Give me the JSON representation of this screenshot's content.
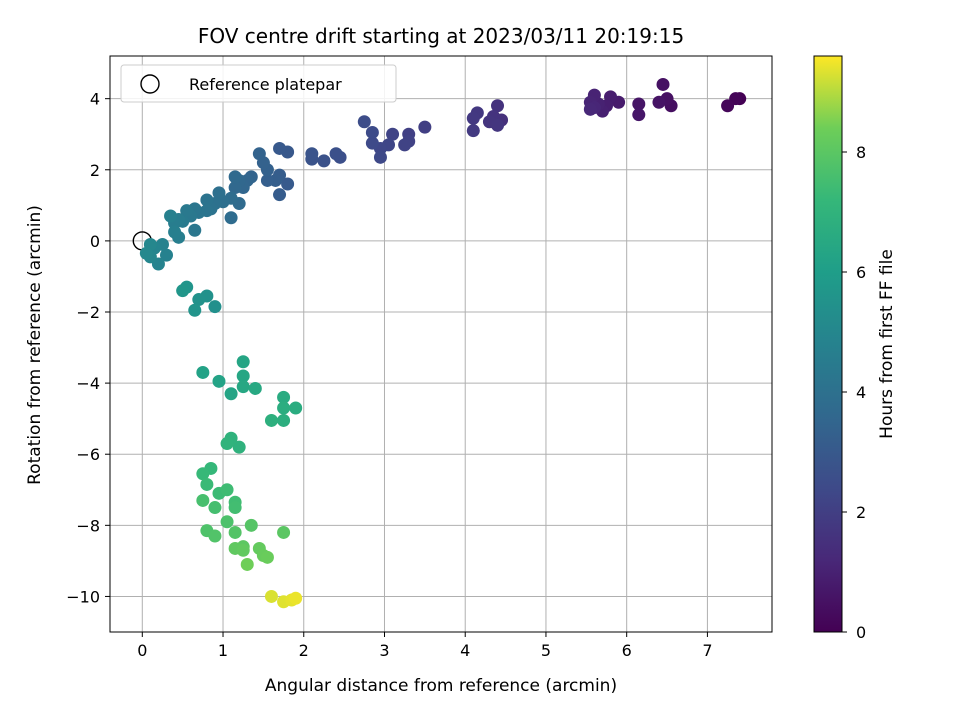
{
  "chart_data": {
    "type": "scatter",
    "title": "FOV centre drift starting at 2023/03/11 20:19:15",
    "xlabel": "Angular distance from reference (arcmin)",
    "ylabel": "Rotation from reference (arcmin)",
    "xlim": [
      -0.4,
      7.8
    ],
    "ylim": [
      -11.0,
      5.2
    ],
    "x_ticks": [
      0,
      1,
      2,
      3,
      4,
      5,
      6,
      7
    ],
    "y_ticks": [
      -10,
      -8,
      -6,
      -4,
      -2,
      0,
      2,
      4
    ],
    "x_tick_labels": [
      "0",
      "1",
      "2",
      "3",
      "4",
      "5",
      "6",
      "7"
    ],
    "y_tick_labels": [
      "−10",
      "−8",
      "−6",
      "−4",
      "−2",
      "0",
      "2",
      "4"
    ],
    "grid": true,
    "colormap": "viridis",
    "colorbar": {
      "label": "Hours from first FF file",
      "range": [
        0,
        9.6
      ],
      "ticks": [
        0,
        2,
        4,
        6,
        8
      ],
      "tick_labels": [
        "0",
        "2",
        "4",
        "6",
        "8"
      ]
    },
    "legend": {
      "position": "top-left",
      "entries": [
        {
          "label": "Reference platepar",
          "marker": "hollow-circle"
        }
      ]
    },
    "reference_point": {
      "x": 0,
      "y": 0
    },
    "points": [
      {
        "x": 7.4,
        "y": 4.0,
        "c": 0.0
      },
      {
        "x": 7.35,
        "y": 4.0,
        "c": 0.1
      },
      {
        "x": 7.25,
        "y": 3.8,
        "c": 0.15
      },
      {
        "x": 6.55,
        "y": 3.8,
        "c": 0.4
      },
      {
        "x": 6.5,
        "y": 4.0,
        "c": 0.45
      },
      {
        "x": 6.45,
        "y": 4.4,
        "c": 0.5
      },
      {
        "x": 6.4,
        "y": 3.9,
        "c": 0.55
      },
      {
        "x": 6.15,
        "y": 3.85,
        "c": 0.6
      },
      {
        "x": 6.15,
        "y": 3.55,
        "c": 0.65
      },
      {
        "x": 5.9,
        "y": 3.9,
        "c": 0.8
      },
      {
        "x": 5.8,
        "y": 4.05,
        "c": 0.85
      },
      {
        "x": 5.75,
        "y": 3.8,
        "c": 0.9
      },
      {
        "x": 5.7,
        "y": 3.65,
        "c": 0.95
      },
      {
        "x": 5.65,
        "y": 3.85,
        "c": 1.0
      },
      {
        "x": 5.6,
        "y": 4.1,
        "c": 1.05
      },
      {
        "x": 5.55,
        "y": 3.9,
        "c": 1.1
      },
      {
        "x": 5.6,
        "y": 3.75,
        "c": 1.15
      },
      {
        "x": 5.55,
        "y": 3.7,
        "c": 1.2
      },
      {
        "x": 4.45,
        "y": 3.4,
        "c": 1.5
      },
      {
        "x": 4.4,
        "y": 3.8,
        "c": 1.55
      },
      {
        "x": 4.35,
        "y": 3.5,
        "c": 1.6
      },
      {
        "x": 4.3,
        "y": 3.35,
        "c": 1.65
      },
      {
        "x": 4.4,
        "y": 3.25,
        "c": 1.7
      },
      {
        "x": 4.15,
        "y": 3.6,
        "c": 1.75
      },
      {
        "x": 4.1,
        "y": 3.45,
        "c": 1.8
      },
      {
        "x": 4.1,
        "y": 3.1,
        "c": 1.85
      },
      {
        "x": 3.5,
        "y": 3.2,
        "c": 2.0
      },
      {
        "x": 3.3,
        "y": 3.0,
        "c": 2.05
      },
      {
        "x": 3.3,
        "y": 2.8,
        "c": 2.1
      },
      {
        "x": 3.25,
        "y": 2.7,
        "c": 2.15
      },
      {
        "x": 3.1,
        "y": 3.0,
        "c": 2.2
      },
      {
        "x": 3.05,
        "y": 2.7,
        "c": 2.25
      },
      {
        "x": 2.95,
        "y": 2.6,
        "c": 2.3
      },
      {
        "x": 2.95,
        "y": 2.35,
        "c": 2.35
      },
      {
        "x": 2.85,
        "y": 2.75,
        "c": 2.4
      },
      {
        "x": 2.85,
        "y": 3.05,
        "c": 2.45
      },
      {
        "x": 2.75,
        "y": 3.35,
        "c": 2.5
      },
      {
        "x": 2.45,
        "y": 2.35,
        "c": 2.6
      },
      {
        "x": 2.4,
        "y": 2.45,
        "c": 2.65
      },
      {
        "x": 2.25,
        "y": 2.25,
        "c": 2.7
      },
      {
        "x": 2.1,
        "y": 2.3,
        "c": 2.75
      },
      {
        "x": 2.1,
        "y": 2.45,
        "c": 2.8
      },
      {
        "x": 1.8,
        "y": 2.5,
        "c": 2.95
      },
      {
        "x": 1.7,
        "y": 2.6,
        "c": 3.0
      },
      {
        "x": 1.8,
        "y": 1.6,
        "c": 3.05
      },
      {
        "x": 1.7,
        "y": 1.3,
        "c": 3.1
      },
      {
        "x": 1.7,
        "y": 1.85,
        "c": 3.15
      },
      {
        "x": 1.65,
        "y": 1.7,
        "c": 3.2
      },
      {
        "x": 1.55,
        "y": 1.7,
        "c": 3.25
      },
      {
        "x": 1.55,
        "y": 2.0,
        "c": 3.3
      },
      {
        "x": 1.5,
        "y": 2.2,
        "c": 3.35
      },
      {
        "x": 1.45,
        "y": 2.45,
        "c": 3.4
      },
      {
        "x": 1.35,
        "y": 1.8,
        "c": 3.45
      },
      {
        "x": 1.3,
        "y": 1.7,
        "c": 3.5
      },
      {
        "x": 1.25,
        "y": 1.5,
        "c": 3.55
      },
      {
        "x": 1.2,
        "y": 1.7,
        "c": 3.6
      },
      {
        "x": 1.15,
        "y": 1.5,
        "c": 3.65
      },
      {
        "x": 1.15,
        "y": 1.8,
        "c": 3.7
      },
      {
        "x": 1.2,
        "y": 1.05,
        "c": 3.75
      },
      {
        "x": 1.1,
        "y": 0.65,
        "c": 3.8
      },
      {
        "x": 1.1,
        "y": 1.2,
        "c": 3.85
      },
      {
        "x": 1.0,
        "y": 1.1,
        "c": 3.9
      },
      {
        "x": 0.95,
        "y": 1.35,
        "c": 3.95
      },
      {
        "x": 0.9,
        "y": 1.05,
        "c": 4.0
      },
      {
        "x": 0.85,
        "y": 0.9,
        "c": 4.05
      },
      {
        "x": 0.8,
        "y": 1.15,
        "c": 4.1
      },
      {
        "x": 0.8,
        "y": 0.85,
        "c": 4.15
      },
      {
        "x": 0.7,
        "y": 0.8,
        "c": 4.2
      },
      {
        "x": 0.65,
        "y": 0.9,
        "c": 4.25
      },
      {
        "x": 0.65,
        "y": 0.3,
        "c": 4.3
      },
      {
        "x": 0.6,
        "y": 0.7,
        "c": 4.35
      },
      {
        "x": 0.55,
        "y": 0.85,
        "c": 4.4
      },
      {
        "x": 0.5,
        "y": 0.55,
        "c": 4.45
      },
      {
        "x": 0.45,
        "y": 0.6,
        "c": 4.5
      },
      {
        "x": 0.4,
        "y": 0.5,
        "c": 4.55
      },
      {
        "x": 0.45,
        "y": 0.1,
        "c": 4.6
      },
      {
        "x": 0.4,
        "y": 0.25,
        "c": 4.65
      },
      {
        "x": 0.35,
        "y": 0.7,
        "c": 4.7
      },
      {
        "x": 0.3,
        "y": -0.4,
        "c": 4.75
      },
      {
        "x": 0.25,
        "y": -0.1,
        "c": 4.8
      },
      {
        "x": 0.2,
        "y": -0.65,
        "c": 4.85
      },
      {
        "x": 0.15,
        "y": -0.2,
        "c": 4.9
      },
      {
        "x": 0.1,
        "y": -0.45,
        "c": 4.95
      },
      {
        "x": 0.1,
        "y": -0.1,
        "c": 5.0
      },
      {
        "x": 0.05,
        "y": -0.35,
        "c": 5.05
      },
      {
        "x": 0.9,
        "y": -1.85,
        "c": 5.4
      },
      {
        "x": 0.8,
        "y": -1.55,
        "c": 5.45
      },
      {
        "x": 0.7,
        "y": -1.65,
        "c": 5.5
      },
      {
        "x": 0.65,
        "y": -1.95,
        "c": 5.55
      },
      {
        "x": 0.55,
        "y": -1.3,
        "c": 5.6
      },
      {
        "x": 0.5,
        "y": -1.4,
        "c": 5.65
      },
      {
        "x": 0.75,
        "y": -3.7,
        "c": 6.2
      },
      {
        "x": 0.95,
        "y": -3.95,
        "c": 6.25
      },
      {
        "x": 1.1,
        "y": -4.3,
        "c": 6.3
      },
      {
        "x": 1.25,
        "y": -3.4,
        "c": 6.35
      },
      {
        "x": 1.25,
        "y": -3.8,
        "c": 6.4
      },
      {
        "x": 1.25,
        "y": -4.1,
        "c": 6.45
      },
      {
        "x": 1.4,
        "y": -4.15,
        "c": 6.5
      },
      {
        "x": 1.75,
        "y": -4.4,
        "c": 6.6
      },
      {
        "x": 1.9,
        "y": -4.7,
        "c": 6.65
      },
      {
        "x": 1.75,
        "y": -4.7,
        "c": 6.7
      },
      {
        "x": 1.75,
        "y": -5.05,
        "c": 6.75
      },
      {
        "x": 1.6,
        "y": -5.05,
        "c": 6.8
      },
      {
        "x": 1.2,
        "y": -5.8,
        "c": 6.9
      },
      {
        "x": 1.1,
        "y": -5.55,
        "c": 6.95
      },
      {
        "x": 1.05,
        "y": -5.7,
        "c": 7.0
      },
      {
        "x": 0.85,
        "y": -6.4,
        "c": 7.2
      },
      {
        "x": 0.75,
        "y": -6.55,
        "c": 7.25
      },
      {
        "x": 0.8,
        "y": -6.85,
        "c": 7.3
      },
      {
        "x": 0.95,
        "y": -7.1,
        "c": 7.35
      },
      {
        "x": 1.05,
        "y": -7.0,
        "c": 7.4
      },
      {
        "x": 1.15,
        "y": -7.35,
        "c": 7.45
      },
      {
        "x": 1.15,
        "y": -7.5,
        "c": 7.5
      },
      {
        "x": 0.9,
        "y": -7.5,
        "c": 7.55
      },
      {
        "x": 0.75,
        "y": -7.3,
        "c": 7.6
      },
      {
        "x": 1.05,
        "y": -7.9,
        "c": 7.7
      },
      {
        "x": 0.8,
        "y": -8.15,
        "c": 7.75
      },
      {
        "x": 0.9,
        "y": -8.3,
        "c": 7.8
      },
      {
        "x": 1.15,
        "y": -8.2,
        "c": 7.85
      },
      {
        "x": 1.35,
        "y": -8.0,
        "c": 7.9
      },
      {
        "x": 1.75,
        "y": -8.2,
        "c": 8.0
      },
      {
        "x": 1.25,
        "y": -8.6,
        "c": 8.05
      },
      {
        "x": 1.15,
        "y": -8.65,
        "c": 8.1
      },
      {
        "x": 1.25,
        "y": -8.7,
        "c": 8.15
      },
      {
        "x": 1.45,
        "y": -8.65,
        "c": 8.2
      },
      {
        "x": 1.5,
        "y": -8.85,
        "c": 8.25
      },
      {
        "x": 1.55,
        "y": -8.9,
        "c": 8.3
      },
      {
        "x": 1.3,
        "y": -9.1,
        "c": 8.4
      },
      {
        "x": 1.6,
        "y": -10.0,
        "c": 9.3
      },
      {
        "x": 1.75,
        "y": -10.15,
        "c": 9.35
      },
      {
        "x": 1.85,
        "y": -10.1,
        "c": 9.4
      },
      {
        "x": 1.9,
        "y": -10.05,
        "c": 9.45
      }
    ]
  }
}
